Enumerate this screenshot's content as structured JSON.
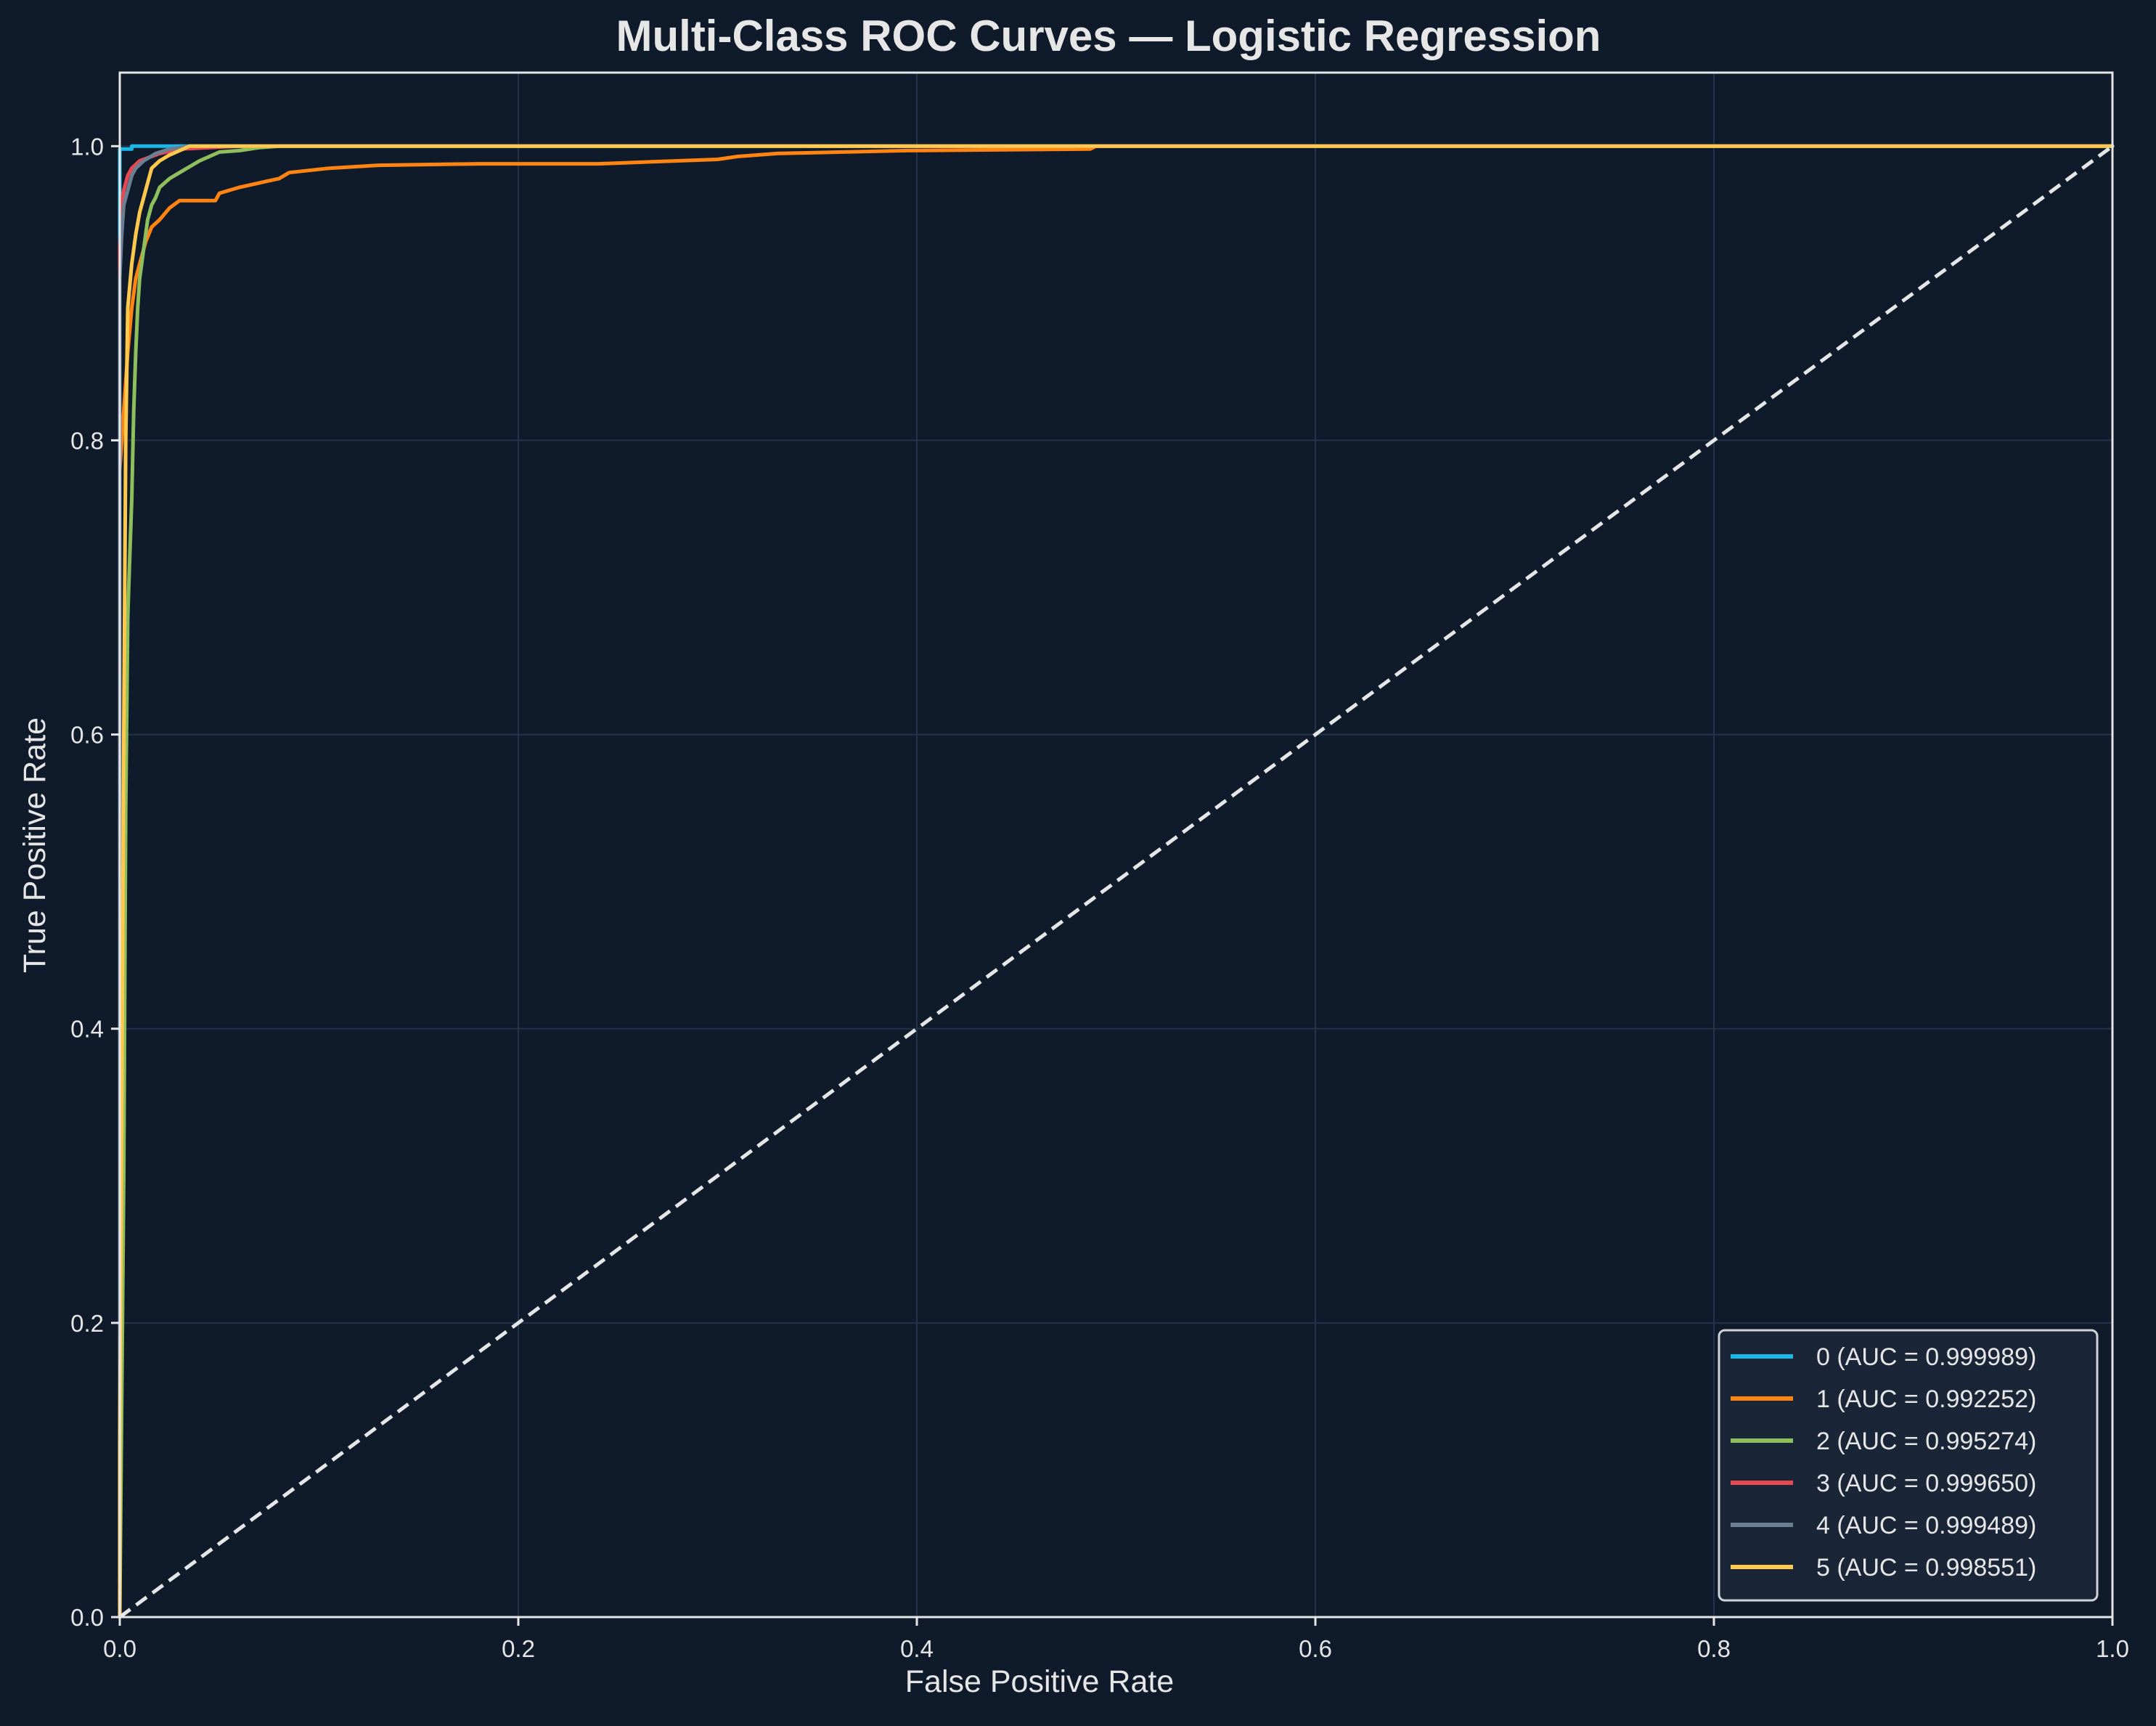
{
  "chart_data": {
    "type": "line",
    "title": "Multi-Class ROC Curves — Logistic Regression",
    "xlabel": "False Positive Rate",
    "ylabel": "True Positive Rate",
    "xlim": [
      0.0,
      1.0
    ],
    "ylim": [
      0.0,
      1.05
    ],
    "xticks": [
      0.0,
      0.2,
      0.4,
      0.6,
      0.8,
      1.0
    ],
    "yticks": [
      0.0,
      0.2,
      0.4,
      0.6,
      0.8,
      1.0
    ],
    "xtick_labels": [
      "0.0",
      "0.2",
      "0.4",
      "0.6",
      "0.8",
      "1.0"
    ],
    "ytick_labels": [
      "0.0",
      "0.2",
      "0.4",
      "0.6",
      "0.8",
      "1.0"
    ],
    "grid": true,
    "legend_position": "lower-right",
    "background_color": "#0f1b2b",
    "text_color": "#e6e6e6",
    "reference_line": {
      "x": [
        0.0,
        1.0
      ],
      "y": [
        0.0,
        1.0
      ],
      "style": "dashed",
      "color": "#e6e6e6"
    },
    "series": [
      {
        "name": "0 (AUC = 0.999989)",
        "color": "#1ab8e8",
        "x": [
          0.0,
          0.0,
          0.0,
          0.006,
          0.006,
          1.0
        ],
        "y": [
          0.0,
          0.99,
          0.998,
          0.998,
          1.0,
          1.0
        ]
      },
      {
        "name": "1 (AUC = 0.992252)",
        "color": "#ff8412",
        "x": [
          0.0,
          0.0,
          0.002,
          0.004,
          0.006,
          0.008,
          0.01,
          0.013,
          0.016,
          0.02,
          0.025,
          0.03,
          0.048,
          0.05,
          0.06,
          0.07,
          0.08,
          0.085,
          0.105,
          0.13,
          0.18,
          0.24,
          0.3,
          0.31,
          0.33,
          0.395,
          0.487,
          0.49,
          1.0
        ],
        "y": [
          0.0,
          0.78,
          0.82,
          0.86,
          0.89,
          0.91,
          0.92,
          0.935,
          0.945,
          0.95,
          0.958,
          0.963,
          0.963,
          0.968,
          0.972,
          0.975,
          0.978,
          0.982,
          0.985,
          0.987,
          0.988,
          0.988,
          0.991,
          0.993,
          0.995,
          0.997,
          0.998,
          1.0,
          1.0
        ]
      },
      {
        "name": "2 (AUC = 0.995274)",
        "color": "#8fbf5c",
        "x": [
          0.0,
          0.002,
          0.003,
          0.004,
          0.005,
          0.006,
          0.007,
          0.008,
          0.009,
          0.01,
          0.012,
          0.014,
          0.016,
          0.018,
          0.02,
          0.025,
          0.03,
          0.035,
          0.04,
          0.045,
          0.05,
          0.06,
          0.07,
          0.08,
          1.0
        ],
        "y": [
          0.0,
          0.3,
          0.55,
          0.68,
          0.72,
          0.76,
          0.82,
          0.86,
          0.89,
          0.91,
          0.93,
          0.95,
          0.96,
          0.965,
          0.972,
          0.978,
          0.982,
          0.986,
          0.99,
          0.993,
          0.996,
          0.997,
          0.999,
          1.0,
          1.0
        ]
      },
      {
        "name": "3 (AUC = 0.999650)",
        "color": "#e8484f",
        "x": [
          0.0,
          0.0,
          0.001,
          0.002,
          0.004,
          0.006,
          0.01,
          0.02,
          0.03,
          0.06,
          1.0
        ],
        "y": [
          0.0,
          0.93,
          0.96,
          0.97,
          0.98,
          0.985,
          0.99,
          0.995,
          0.998,
          1.0,
          1.0
        ]
      },
      {
        "name": "4 (AUC = 0.999489)",
        "color": "#6b7f94",
        "x": [
          0.0,
          0.0,
          0.001,
          0.002,
          0.004,
          0.006,
          0.008,
          0.012,
          0.018,
          0.025,
          0.035,
          1.0
        ],
        "y": [
          0.0,
          0.91,
          0.94,
          0.96,
          0.97,
          0.98,
          0.985,
          0.99,
          0.995,
          0.998,
          1.0,
          1.0
        ]
      },
      {
        "name": "5 (AUC = 0.998551)",
        "color": "#ffc94d",
        "x": [
          0.0,
          0.0,
          0.001,
          0.002,
          0.003,
          0.004,
          0.006,
          0.008,
          0.01,
          0.012,
          0.014,
          0.016,
          0.02,
          0.025,
          0.03,
          0.035,
          1.0
        ],
        "y": [
          0.0,
          0.12,
          0.35,
          0.6,
          0.8,
          0.89,
          0.92,
          0.94,
          0.955,
          0.965,
          0.975,
          0.985,
          0.99,
          0.994,
          0.997,
          1.0,
          1.0
        ]
      }
    ]
  }
}
